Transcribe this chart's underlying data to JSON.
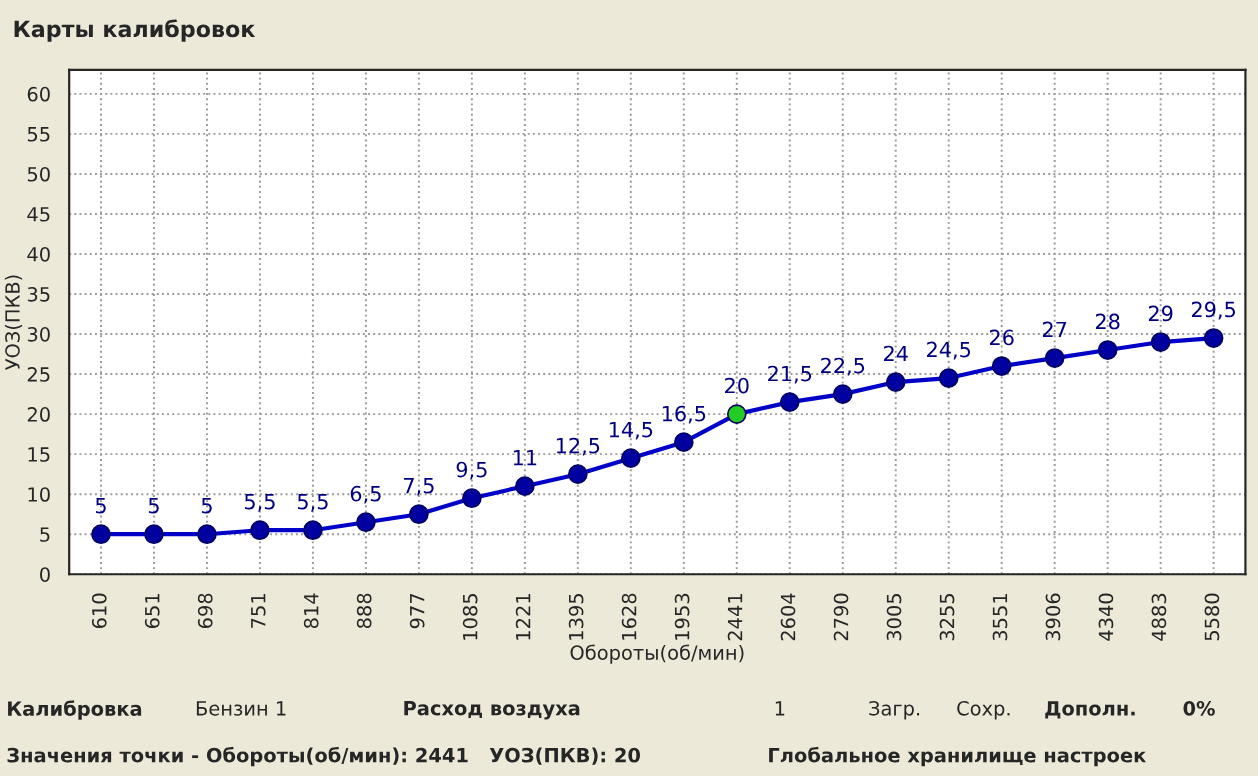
{
  "chart_data": {
    "type": "line",
    "title": "Карты калибровок",
    "xlabel": "Обороты(об/мин)",
    "ylabel": "УОЗ(ПКВ)",
    "categories": [
      "610",
      "651",
      "698",
      "751",
      "814",
      "888",
      "977",
      "1085",
      "1221",
      "1395",
      "1628",
      "1953",
      "2441",
      "2604",
      "2790",
      "3005",
      "3255",
      "3551",
      "3906",
      "4340",
      "4883",
      "5580"
    ],
    "series": [
      {
        "color": "#0000c8",
        "values": [
          5,
          5,
          5,
          5.5,
          5.5,
          6.5,
          7.5,
          9.5,
          11,
          12.5,
          14.5,
          16.5,
          20,
          21.5,
          22.5,
          24,
          24.5,
          26,
          27,
          28,
          29,
          29.5
        ],
        "colors": [
          "#0000a0",
          "#0000a0",
          "#0000a0",
          "#0000a0",
          "#0000a0",
          "#0000a0",
          "#0000a0",
          "#0000a0",
          "#0000a0",
          "#0000a0",
          "#0000a0",
          "#0000a0",
          "#22cc22",
          "#0000a0",
          "#0000a0",
          "#0000a0",
          "#0000a0",
          "#0000a0",
          "#0000a0",
          "#0000a0",
          "#0000a0",
          "#0000a0"
        ]
      }
    ],
    "value_labels": [
      "5",
      "5",
      "5",
      "5,5",
      "5,5",
      "6,5",
      "7,5",
      "9,5",
      "11",
      "12,5",
      "14,5",
      "16,5",
      "20",
      "21,5",
      "22,5",
      "24",
      "24,5",
      "26",
      "27",
      "28",
      "29",
      "29,5"
    ],
    "ylim": [
      0,
      63
    ],
    "yticks": [
      0,
      5,
      10,
      15,
      20,
      25,
      30,
      35,
      40,
      45,
      50,
      55,
      60
    ],
    "grid": true,
    "marker": "circle",
    "line_style": "solid",
    "annotations": [
      "Калибровка",
      "Бензин 1",
      "Расход воздуха",
      "1",
      "Загр.",
      "Сохр.",
      "Дополн.",
      "0%",
      "Значения точки - Обороты(об/мин): 2441   УОЗ(ПКВ): 20",
      "Глобальное хранилище настроек"
    ]
  }
}
